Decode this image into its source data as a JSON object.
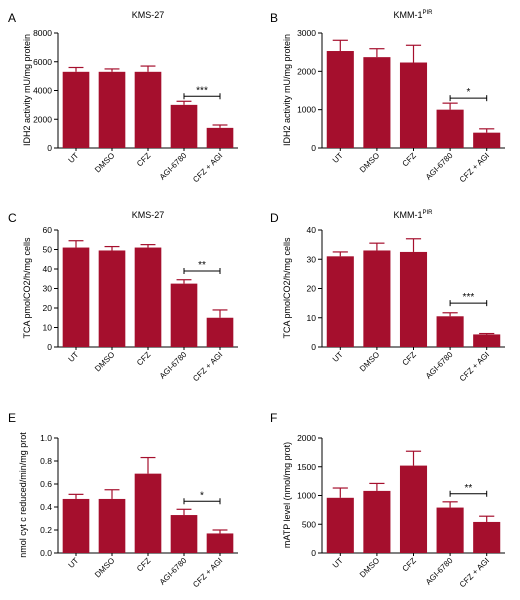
{
  "colors": {
    "bar": "#a50f2d",
    "axis": "#000000"
  },
  "chart_data": [
    {
      "panel_label": "A",
      "type": "bar",
      "title": "KMS-27",
      "title_sup": "",
      "ylabel": "IDH2 activity mU/mg protein",
      "categories": [
        "UT",
        "DMSO",
        "CFZ",
        "AGI-6780",
        "CFZ + AGI"
      ],
      "values": [
        5300,
        5300,
        5300,
        3000,
        1400
      ],
      "errors": [
        300,
        200,
        400,
        250,
        200
      ],
      "ylim": [
        0,
        8000
      ],
      "yticks": [
        0,
        2000,
        4000,
        6000,
        8000
      ],
      "significance": {
        "from": 3,
        "to": 4,
        "label": "***",
        "y": 3600
      }
    },
    {
      "panel_label": "B",
      "type": "bar",
      "title": "KMM-1",
      "title_sup": "PIR",
      "ylabel": "IDH2 activity mU/mg protein",
      "categories": [
        "UT",
        "DMSO",
        "CFZ",
        "AGI-6780",
        "CFZ + AGI"
      ],
      "values": [
        2530,
        2370,
        2230,
        1000,
        400
      ],
      "errors": [
        280,
        220,
        450,
        170,
        100
      ],
      "ylim": [
        0,
        3000
      ],
      "yticks": [
        0,
        1000,
        2000,
        3000
      ],
      "significance": {
        "from": 3,
        "to": 4,
        "label": "*",
        "y": 1300
      }
    },
    {
      "panel_label": "C",
      "type": "bar",
      "title": "KMS-27",
      "title_sup": "",
      "ylabel": "TCA pmolCO2/h/mg cells",
      "categories": [
        "UT",
        "DMSO",
        "CFZ",
        "AGI-6780",
        "CFZ + AGI"
      ],
      "values": [
        51,
        49.5,
        51,
        32.5,
        15
      ],
      "errors": [
        3.5,
        2,
        1.5,
        2,
        4
      ],
      "ylim": [
        0,
        60
      ],
      "yticks": [
        0,
        10,
        20,
        30,
        40,
        50,
        60
      ],
      "significance": {
        "from": 3,
        "to": 4,
        "label": "**",
        "y": 39
      }
    },
    {
      "panel_label": "D",
      "type": "bar",
      "title": "KMM-1",
      "title_sup": "PIR",
      "ylabel": "TCA pmolCO2/h/mg cells",
      "categories": [
        "UT",
        "DMSO",
        "CFZ",
        "AGI-6780",
        "CFZ + AGI"
      ],
      "values": [
        31,
        33,
        32.5,
        10.5,
        4.3
      ],
      "errors": [
        1.5,
        2.5,
        4.5,
        1.2,
        0.3
      ],
      "ylim": [
        0,
        40
      ],
      "yticks": [
        0,
        10,
        20,
        30,
        40
      ],
      "significance": {
        "from": 3,
        "to": 4,
        "label": "***",
        "y": 15
      }
    },
    {
      "panel_label": "E",
      "type": "bar",
      "title": "",
      "title_sup": "",
      "ylabel": "nmol cyt c reduced/min/mg prot",
      "categories": [
        "UT",
        "DMSO",
        "CFZ",
        "AGI-6780",
        "CFZ + AGI"
      ],
      "values": [
        0.47,
        0.47,
        0.69,
        0.33,
        0.17
      ],
      "errors": [
        0.04,
        0.08,
        0.14,
        0.05,
        0.03
      ],
      "ylim": [
        0,
        1.0
      ],
      "yticks": [
        0,
        0.2,
        0.4,
        0.6,
        0.8,
        1.0
      ],
      "ytick_labels": [
        "0.0",
        "0.2",
        "0.4",
        "0.6",
        "0.8",
        "1.0"
      ],
      "significance": {
        "from": 3,
        "to": 4,
        "label": "*",
        "y": 0.45
      }
    },
    {
      "panel_label": "F",
      "type": "bar",
      "title": "",
      "title_sup": "",
      "ylabel": "mATP level (nmol/mg prot)",
      "categories": [
        "UT",
        "DMSO",
        "CFZ",
        "AGI-6780",
        "CFZ + AGI"
      ],
      "values": [
        960,
        1080,
        1520,
        790,
        540
      ],
      "errors": [
        170,
        130,
        250,
        100,
        100
      ],
      "ylim": [
        0,
        2000
      ],
      "yticks": [
        0,
        500,
        1000,
        1500,
        2000
      ],
      "significance": {
        "from": 3,
        "to": 4,
        "label": "**",
        "y": 1030
      }
    }
  ]
}
